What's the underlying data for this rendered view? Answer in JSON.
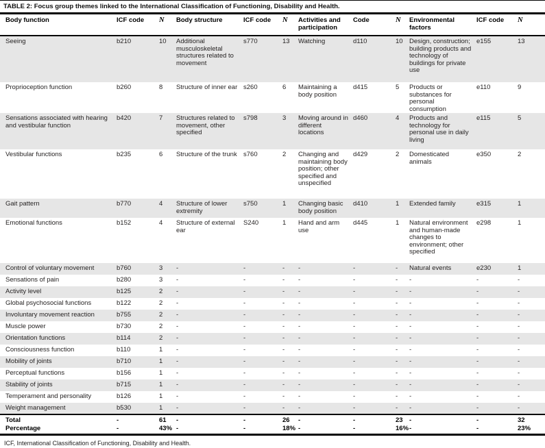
{
  "table": {
    "title_label": "TABLE 2:",
    "title_text": "Focus group themes linked to the International Classification of Functioning, Disability and Health.",
    "columns": [
      {
        "label": "Body function"
      },
      {
        "label": "ICF code"
      },
      {
        "label": "N"
      },
      {
        "label": "Body structure"
      },
      {
        "label": "ICF code"
      },
      {
        "label": "N"
      },
      {
        "label": "Activities and participation"
      },
      {
        "label": "Code"
      },
      {
        "label": "N"
      },
      {
        "label": "Environmental factors"
      },
      {
        "label": "ICF code"
      },
      {
        "label": "N"
      }
    ],
    "rows": [
      [
        "Seeing",
        "b210",
        "10",
        "Additional musculoskeletal structures related to movement",
        "s770",
        "13",
        "Watching",
        "d110",
        "10",
        "Design, construction; building products and technology of buildings for private use",
        "e155",
        "13"
      ],
      [
        "Proprioception function",
        "b260",
        "8",
        "Structure of inner ear",
        "s260",
        "6",
        "Maintaining a body position",
        "d415",
        "5",
        "Products or substances for personal consumption",
        "e110",
        "9"
      ],
      [
        "Sensations associated with hearing and vestibular function",
        "b420",
        "7",
        "Structures related to movement, other specified",
        "s798",
        "3",
        "Moving around in different locations",
        "d460",
        "4",
        "Products and technology for personal use in daily living",
        "e115",
        "5"
      ],
      [
        "Vestibular functions",
        "b235",
        "6",
        "Structure of the trunk",
        "s760",
        "2",
        "Changing and maintaining body position; other specified and unspecified",
        "d429",
        "2",
        "Domesticated animals",
        "e350",
        "2"
      ],
      [
        "Gait pattern",
        "b770",
        "4",
        "Structure of lower extremity",
        "s750",
        "1",
        "Changing basic body position",
        "d410",
        "1",
        "Extended family",
        "e315",
        "1"
      ],
      [
        "Emotional functions",
        "b152",
        "4",
        "Structure of external ear",
        "S240",
        "1",
        "Hand and arm use",
        "d445",
        "1",
        "Natural environment and human-made changes to environment; other specified",
        "e298",
        "1"
      ],
      [
        "Control of voluntary movement",
        "b760",
        "3",
        "-",
        "-",
        "-",
        "-",
        "-",
        "-",
        "Natural events",
        "e230",
        "1"
      ],
      [
        "Sensations of pain",
        "b280",
        "3",
        "-",
        "-",
        "-",
        "-",
        "-",
        "-",
        "-",
        "-",
        "-"
      ],
      [
        "Activity level",
        "b125",
        "2",
        "-",
        "-",
        "-",
        "-",
        "-",
        "-",
        "-",
        "-",
        "-"
      ],
      [
        "Global psychosocial functions",
        "b122",
        "2",
        "-",
        "-",
        "-",
        "-",
        "-",
        "-",
        "-",
        "-",
        "-"
      ],
      [
        "Involuntary movement reaction",
        "b755",
        "2",
        "-",
        "-",
        "-",
        "-",
        "-",
        "-",
        "-",
        "-",
        "-"
      ],
      [
        "Muscle power",
        "b730",
        "2",
        "-",
        "-",
        "-",
        "-",
        "-",
        "-",
        "-",
        "-",
        "-"
      ],
      [
        "Orientation functions",
        "b114",
        "2",
        "-",
        "-",
        "-",
        "-",
        "-",
        "-",
        "-",
        "-",
        "-"
      ],
      [
        "Consciousness function",
        "b110",
        "1",
        "-",
        "-",
        "-",
        "-",
        "-",
        "-",
        "-",
        "-",
        "-"
      ],
      [
        "Mobility of joints",
        "b710",
        "1",
        "-",
        "-",
        "-",
        "-",
        "-",
        "-",
        "-",
        "-",
        "-"
      ],
      [
        "Perceptual functions",
        "b156",
        "1",
        "-",
        "-",
        "-",
        "-",
        "-",
        "-",
        "-",
        "-",
        "-"
      ],
      [
        "Stability of joints",
        "b715",
        "1",
        "-",
        "-",
        "-",
        "-",
        "-",
        "-",
        "-",
        "-",
        "-"
      ],
      [
        "Temperament and personality",
        "b126",
        "1",
        "-",
        "-",
        "-",
        "-",
        "-",
        "-",
        "-",
        "-",
        "-"
      ],
      [
        "Weight management",
        "b530",
        "1",
        "-",
        "-",
        "-",
        "-",
        "-",
        "-",
        "-",
        "-",
        "-"
      ]
    ],
    "total_row": [
      "Total",
      "-",
      "61",
      "-",
      "-",
      "26",
      "-",
      "-",
      "23",
      "-",
      "-",
      "32"
    ],
    "percentage_row": [
      "Percentage",
      "-",
      "43%",
      "-",
      "-",
      "18%",
      "-",
      "-",
      "16%",
      "-",
      "-",
      "23%"
    ],
    "footnote": "ICF, International Classification of Functioning, Disability and Health.",
    "colors": {
      "row_shade": "#e6e6e6",
      "rule": "#000000",
      "text": "#1f1d1d"
    }
  }
}
